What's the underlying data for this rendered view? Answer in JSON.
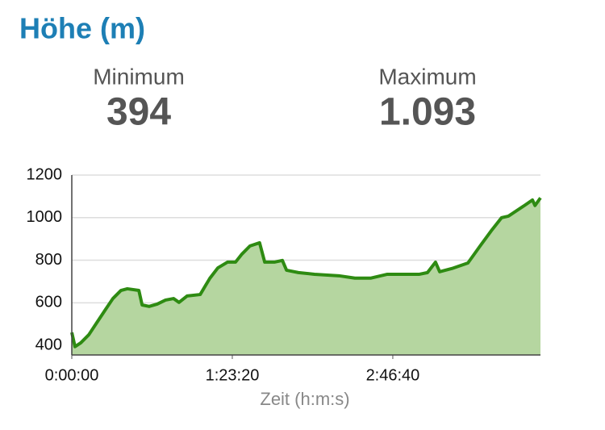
{
  "header": {
    "title": "Höhe (m)"
  },
  "stats": [
    {
      "label": "Minimum",
      "value": "394"
    },
    {
      "label": "Maximum",
      "value": "1.093"
    }
  ],
  "chart_data": {
    "type": "area",
    "x_label": "Zeit (h:m:s)",
    "x": [
      0,
      100,
      280,
      530,
      780,
      1030,
      1280,
      1530,
      1730,
      2090,
      2190,
      2410,
      2660,
      2920,
      3170,
      3340,
      3590,
      4000,
      4300,
      4550,
      4850,
      5100,
      5300,
      5550,
      5850,
      6010,
      6310,
      6560,
      6690,
      7060,
      7560,
      8320,
      8820,
      9320,
      9830,
      10330,
      10830,
      11080,
      11330,
      11460,
      11840,
      12340,
      12720,
      13090,
      13390,
      13600,
      14100,
      14350,
      14430,
      14600
    ],
    "series": [
      {
        "name": "Höhe",
        "color": "#2e8b12",
        "fill": "#b5d6a0",
        "values": [
          461,
          394,
          412,
          450,
          507,
          564,
          620,
          658,
          666,
          658,
          590,
          583,
          594,
          613,
          620,
          602,
          632,
          639,
          715,
          764,
          791,
          791,
          829,
          867,
          882,
          791,
          791,
          799,
          753,
          742,
          734,
          727,
          716,
          716,
          734,
          734,
          734,
          742,
          791,
          746,
          761,
          787,
          867,
          943,
          1000,
          1007,
          1057,
          1083,
          1057,
          1093
        ]
      }
    ],
    "xlim": [
      0,
      14600
    ],
    "ylim": [
      355,
      1200
    ],
    "xticks": [
      {
        "value": 0,
        "label": "0:00:00"
      },
      {
        "value": 5000,
        "label": "1:23:20"
      },
      {
        "value": 10000,
        "label": "2:46:40"
      }
    ],
    "yticks": [
      400,
      600,
      800,
      1000,
      1200
    ],
    "grid": true
  }
}
